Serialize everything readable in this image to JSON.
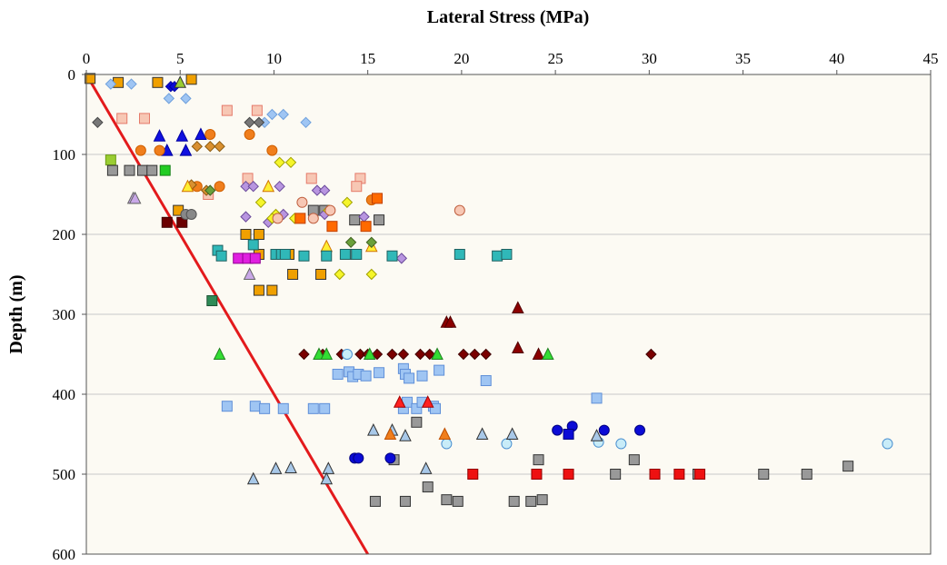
{
  "chart_data": {
    "type": "scatter",
    "title": "",
    "xlabel": "Lateral Stress (MPa)",
    "ylabel": "Depth (m)",
    "xlim": [
      0,
      45
    ],
    "ylim": [
      0,
      600
    ],
    "y_inverted": true,
    "x_axis_position": "top",
    "x_ticks": [
      0,
      5,
      10,
      15,
      20,
      25,
      30,
      35,
      40,
      45
    ],
    "y_ticks": [
      0,
      100,
      200,
      300,
      400,
      500,
      600
    ],
    "grid": "horizontal",
    "legend": "none",
    "plot_background": "#fcfaf3",
    "reference_line": {
      "points": [
        [
          0,
          0
        ],
        [
          15,
          600
        ]
      ],
      "color": "#e31a1c"
    },
    "series": [
      {
        "marker": "square",
        "fill": "#f0a000",
        "stroke": "#333333",
        "points": [
          [
            0.2,
            5
          ],
          [
            1.7,
            10
          ],
          [
            3.8,
            10
          ],
          [
            5.6,
            6
          ],
          [
            4.9,
            170
          ],
          [
            8.5,
            200
          ],
          [
            9.2,
            200
          ],
          [
            9.2,
            225
          ],
          [
            11,
            250
          ],
          [
            12.5,
            250
          ],
          [
            9.2,
            270
          ],
          [
            9.9,
            270
          ],
          [
            10.8,
            225
          ]
        ]
      },
      {
        "marker": "square",
        "fill": "#f7c7b4",
        "stroke": "#e57a6a",
        "points": [
          [
            1.9,
            55
          ],
          [
            3.1,
            55
          ],
          [
            7.5,
            45
          ],
          [
            9.1,
            45
          ],
          [
            8.6,
            130
          ],
          [
            12,
            130
          ],
          [
            14.6,
            130
          ],
          [
            14.4,
            140
          ],
          [
            6.5,
            150
          ]
        ]
      },
      {
        "marker": "diamond",
        "fill": "#9fc5f3",
        "stroke": "#6fa0dc",
        "points": [
          [
            1.3,
            12
          ],
          [
            2.4,
            12
          ],
          [
            4.4,
            30
          ],
          [
            5.3,
            30
          ],
          [
            9.9,
            50
          ],
          [
            10.5,
            50
          ],
          [
            11.7,
            60
          ],
          [
            9.5,
            60
          ]
        ]
      },
      {
        "marker": "diamond",
        "fill": "#0b0bd6",
        "stroke": "#0000a0",
        "points": [
          [
            4.5,
            15
          ],
          [
            4.7,
            15
          ]
        ]
      },
      {
        "marker": "triangle",
        "fill": "#9acd32",
        "stroke": "#333333",
        "points": [
          [
            5,
            10
          ]
        ]
      },
      {
        "marker": "diamond",
        "fill": "#777777",
        "stroke": "#444444",
        "points": [
          [
            0.6,
            60
          ],
          [
            8.7,
            60
          ],
          [
            9.2,
            60
          ]
        ]
      },
      {
        "marker": "triangle",
        "fill": "#1010e0",
        "stroke": "#0000a0",
        "points": [
          [
            3.9,
            77
          ],
          [
            5.1,
            77
          ],
          [
            6.1,
            75
          ],
          [
            4.3,
            95
          ],
          [
            5.3,
            95
          ]
        ]
      },
      {
        "marker": "circle",
        "fill": "#f07e1c",
        "stroke": "#d06000",
        "points": [
          [
            2.9,
            95
          ],
          [
            3.9,
            95
          ],
          [
            6.6,
            75
          ],
          [
            9.9,
            95
          ],
          [
            8.7,
            75
          ],
          [
            5.9,
            140
          ],
          [
            7.1,
            140
          ],
          [
            15.2,
            157
          ]
        ]
      },
      {
        "marker": "diamond",
        "fill": "#d99030",
        "stroke": "#8a5a10",
        "points": [
          [
            5.9,
            90
          ],
          [
            6.6,
            90
          ],
          [
            7.1,
            90
          ],
          [
            6.4,
            145
          ],
          [
            5.6,
            138
          ]
        ]
      },
      {
        "marker": "square",
        "fill": "#9acd32",
        "stroke": "#6a9a10",
        "points": [
          [
            1.3,
            107
          ]
        ]
      },
      {
        "marker": "square",
        "fill": "#999999",
        "stroke": "#333333",
        "points": [
          [
            1.4,
            120
          ],
          [
            2.3,
            120
          ],
          [
            3,
            120
          ],
          [
            3.5,
            120
          ],
          [
            12.1,
            170
          ],
          [
            12.7,
            170
          ],
          [
            14.3,
            182
          ],
          [
            15.6,
            182
          ],
          [
            15.4,
            534
          ],
          [
            16.4,
            482
          ],
          [
            17,
            534
          ],
          [
            17.6,
            435
          ],
          [
            18.2,
            516
          ],
          [
            19.2,
            532
          ],
          [
            19.8,
            534
          ],
          [
            22.8,
            534
          ],
          [
            23.7,
            534
          ],
          [
            24.1,
            482
          ],
          [
            24.3,
            532
          ],
          [
            28.2,
            500
          ],
          [
            29.2,
            482
          ],
          [
            32.6,
            500
          ],
          [
            36.1,
            500
          ],
          [
            38.4,
            500
          ],
          [
            40.6,
            490
          ],
          [
            14.1,
            225
          ]
        ]
      },
      {
        "marker": "square",
        "fill": "#22cc22",
        "stroke": "#158015",
        "points": [
          [
            4.2,
            120
          ]
        ]
      },
      {
        "marker": "triangle",
        "fill": "#c9a8e8",
        "stroke": "#666666",
        "points": [
          [
            2.5,
            155
          ],
          [
            2.6,
            155
          ],
          [
            8.7,
            250
          ]
        ]
      },
      {
        "marker": "square",
        "fill": "#6b0000",
        "stroke": "#400000",
        "points": [
          [
            4.3,
            185
          ],
          [
            5.1,
            185
          ]
        ]
      },
      {
        "marker": "circle",
        "fill": "#888888",
        "stroke": "#555555",
        "points": [
          [
            5.3,
            175
          ],
          [
            5.6,
            175
          ]
        ]
      },
      {
        "marker": "triangle",
        "fill": "#ffee33",
        "stroke": "#d07000",
        "points": [
          [
            5.4,
            140
          ],
          [
            9.7,
            140
          ],
          [
            12.8,
            215
          ],
          [
            15.2,
            215
          ]
        ]
      },
      {
        "marker": "diamond",
        "fill": "#b895e0",
        "stroke": "#6a4a9a",
        "points": [
          [
            8.5,
            140
          ],
          [
            8.9,
            140
          ],
          [
            10.3,
            140
          ],
          [
            12.3,
            145
          ],
          [
            12.7,
            145
          ],
          [
            8.5,
            178
          ],
          [
            9.7,
            185
          ],
          [
            10.5,
            175
          ],
          [
            12.7,
            175
          ],
          [
            14.8,
            178
          ],
          [
            16.8,
            230
          ]
        ]
      },
      {
        "marker": "diamond",
        "fill": "#f5f52a",
        "stroke": "#a0a000",
        "points": [
          [
            10.3,
            110
          ],
          [
            10.9,
            110
          ],
          [
            9.3,
            160
          ],
          [
            13.9,
            160
          ],
          [
            10.1,
            175
          ],
          [
            12.9,
            170
          ],
          [
            11.1,
            180
          ],
          [
            13.5,
            250
          ],
          [
            15.2,
            250
          ],
          [
            9.9,
            180
          ]
        ]
      },
      {
        "marker": "diamond",
        "fill": "#6aa03a",
        "stroke": "#406020",
        "points": [
          [
            6.6,
            145
          ],
          [
            14.1,
            210
          ],
          [
            15.2,
            210
          ]
        ]
      },
      {
        "marker": "circle",
        "fill": "#f7c7b4",
        "stroke": "#c06040",
        "points": [
          [
            11.5,
            160
          ],
          [
            12.1,
            180
          ],
          [
            13,
            170
          ],
          [
            19.9,
            170
          ],
          [
            10.2,
            180
          ]
        ]
      },
      {
        "marker": "square",
        "fill": "#ff6a00",
        "stroke": "#c04000",
        "points": [
          [
            13.1,
            190
          ],
          [
            15.5,
            155
          ],
          [
            14.9,
            190
          ],
          [
            11.4,
            180
          ]
        ]
      },
      {
        "marker": "square",
        "fill": "#30b8b8",
        "stroke": "#206060",
        "points": [
          [
            7,
            220
          ],
          [
            7.2,
            227
          ],
          [
            8.9,
            213
          ],
          [
            10.1,
            225
          ],
          [
            10.4,
            225
          ],
          [
            10.6,
            225
          ],
          [
            11.6,
            227
          ],
          [
            12.8,
            227
          ],
          [
            13.8,
            225
          ],
          [
            14.4,
            225
          ],
          [
            16.3,
            227
          ],
          [
            19.9,
            225
          ],
          [
            21.9,
            227
          ],
          [
            22.4,
            225
          ]
        ]
      },
      {
        "marker": "square",
        "fill": "#e020e0",
        "stroke": "#900090",
        "points": [
          [
            8.1,
            230
          ],
          [
            8.6,
            230
          ],
          [
            9,
            230
          ]
        ]
      },
      {
        "marker": "square",
        "fill": "#2e8b57",
        "stroke": "#1a5030",
        "points": [
          [
            6.7,
            283
          ]
        ]
      },
      {
        "marker": "triangle",
        "fill": "#8b0000",
        "stroke": "#500000",
        "points": [
          [
            19.2,
            310
          ],
          [
            19.4,
            310
          ],
          [
            23,
            292
          ],
          [
            23,
            342
          ],
          [
            24.1,
            350
          ]
        ]
      },
      {
        "marker": "diamond",
        "fill": "#7a0000",
        "stroke": "#400000",
        "points": [
          [
            11.6,
            350
          ],
          [
            12.6,
            350
          ],
          [
            13.6,
            350
          ],
          [
            14.6,
            350
          ],
          [
            15,
            350
          ],
          [
            15.5,
            350
          ],
          [
            16.3,
            350
          ],
          [
            16.9,
            350
          ],
          [
            17.8,
            350
          ],
          [
            18.3,
            350
          ],
          [
            20.1,
            350
          ],
          [
            20.7,
            350
          ],
          [
            21.3,
            350
          ],
          [
            30.1,
            350
          ]
        ]
      },
      {
        "marker": "triangle",
        "fill": "#33dd33",
        "stroke": "#208020",
        "points": [
          [
            7.1,
            350
          ],
          [
            12.4,
            350
          ],
          [
            12.8,
            350
          ],
          [
            15.1,
            350
          ],
          [
            18.7,
            350
          ],
          [
            24.6,
            350
          ]
        ]
      },
      {
        "marker": "circle",
        "fill": "#c8ecf8",
        "stroke": "#4a90d0",
        "points": [
          [
            13.9,
            350
          ],
          [
            19.2,
            462
          ],
          [
            22.4,
            462
          ],
          [
            27.3,
            460
          ],
          [
            28.5,
            462
          ],
          [
            42.7,
            462
          ]
        ]
      },
      {
        "marker": "square",
        "fill": "#9fc5f3",
        "stroke": "#5f8fd8",
        "points": [
          [
            13.4,
            375
          ],
          [
            14,
            372
          ],
          [
            14.2,
            378
          ],
          [
            14.5,
            375
          ],
          [
            14.9,
            377
          ],
          [
            15.6,
            373
          ],
          [
            16.9,
            368
          ],
          [
            17,
            375
          ],
          [
            17.2,
            380
          ],
          [
            17.9,
            377
          ],
          [
            18.8,
            370
          ],
          [
            21.3,
            383
          ],
          [
            27.2,
            405
          ],
          [
            7.5,
            415
          ],
          [
            9,
            415
          ],
          [
            9.5,
            418
          ],
          [
            10.5,
            418
          ],
          [
            12.1,
            418
          ],
          [
            12.7,
            418
          ],
          [
            16.9,
            418
          ],
          [
            17.1,
            410
          ],
          [
            17.6,
            418
          ],
          [
            17.9,
            410
          ],
          [
            18.5,
            415
          ],
          [
            18.6,
            418
          ]
        ]
      },
      {
        "marker": "triangle",
        "fill": "#a8c8e8",
        "stroke": "#333333",
        "points": [
          [
            15.3,
            445
          ],
          [
            16.3,
            445
          ],
          [
            17,
            452
          ],
          [
            21.1,
            450
          ],
          [
            22.7,
            450
          ],
          [
            27.2,
            452
          ],
          [
            8.9,
            506
          ],
          [
            10.1,
            493
          ],
          [
            10.9,
            492
          ],
          [
            12.9,
            493
          ],
          [
            12.8,
            506
          ],
          [
            18.1,
            493
          ]
        ]
      },
      {
        "marker": "triangle",
        "fill": "#f07e1c",
        "stroke": "#c05000",
        "points": [
          [
            16.2,
            450
          ],
          [
            19.1,
            450
          ]
        ]
      },
      {
        "marker": "triangle",
        "fill": "#ff2020",
        "stroke": "#a00000",
        "points": [
          [
            16.7,
            410
          ],
          [
            18.2,
            410
          ]
        ]
      },
      {
        "marker": "circle",
        "fill": "#0b0bd6",
        "stroke": "#000080",
        "points": [
          [
            25.1,
            445
          ],
          [
            25.9,
            440
          ],
          [
            27.6,
            445
          ],
          [
            29.5,
            445
          ],
          [
            14.3,
            480
          ],
          [
            14.5,
            480
          ],
          [
            16.2,
            480
          ]
        ]
      },
      {
        "marker": "square",
        "fill": "#0b0bd6",
        "stroke": "#000080",
        "points": [
          [
            25.7,
            450
          ]
        ]
      },
      {
        "marker": "square",
        "fill": "#ee1111",
        "stroke": "#900000",
        "points": [
          [
            20.6,
            500
          ],
          [
            24,
            500
          ],
          [
            25.7,
            500
          ],
          [
            30.3,
            500
          ],
          [
            31.6,
            500
          ],
          [
            32.7,
            500
          ]
        ]
      }
    ]
  }
}
